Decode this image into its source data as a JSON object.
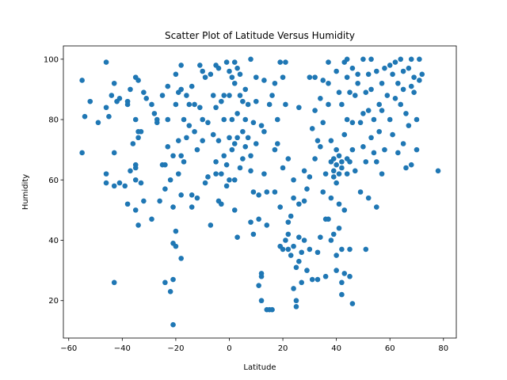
{
  "chart_data": {
    "type": "scatter",
    "title": "Scatter Plot of Latitude Versus Humidity",
    "x_label": "Latitude",
    "y_label": "Humidity",
    "color": "#1f77b4",
    "xlim": [
      -62,
      84.8
    ],
    "ylim": [
      7.6,
      104.4
    ],
    "xticks": [
      {
        "value": -60,
        "label": "−60"
      },
      {
        "value": -40,
        "label": "−40"
      },
      {
        "value": -20,
        "label": "−20"
      },
      0,
      20,
      40,
      60,
      80
    ],
    "yticks": [
      20,
      40,
      60,
      80,
      100
    ],
    "x": [
      -55,
      -55,
      -54,
      -52,
      -49,
      -46,
      -46,
      -46,
      -46,
      -45,
      -44,
      -43,
      -43,
      -43,
      -43,
      -42,
      -41,
      -41,
      -39,
      -38,
      -38,
      -38,
      -37,
      -37,
      -36,
      -35,
      -35,
      -35,
      -35,
      -35,
      -35,
      -34,
      -34,
      -34,
      -34,
      -33,
      -33,
      -32,
      -32,
      -31,
      -29,
      -29,
      -28,
      -27,
      -27,
      -26,
      -25,
      -25,
      -24,
      -24,
      -24,
      -23,
      -23,
      -23,
      -22,
      -22,
      -21,
      -21,
      -21,
      -21,
      -21,
      -20,
      -20,
      -20,
      -20,
      -19,
      -19,
      -19,
      -18,
      -18,
      -18,
      -18,
      -18,
      -17,
      -17,
      -16,
      -16,
      -15,
      -15,
      -14,
      -14,
      -14,
      -13,
      -13,
      -12,
      -12,
      -11,
      -11,
      -10,
      -10,
      -10,
      -9,
      -9,
      -8,
      -8,
      -7,
      -7,
      -6,
      -6,
      -5,
      -5,
      -5,
      -5,
      -4,
      -4,
      -4,
      -3,
      -3,
      -3,
      -2,
      -2,
      -2,
      -1,
      -1,
      -1,
      0,
      0,
      0,
      0,
      1,
      1,
      1,
      2,
      2,
      2,
      2,
      2,
      3,
      3,
      3,
      3,
      4,
      4,
      4,
      5,
      5,
      5,
      6,
      6,
      6,
      7,
      7,
      8,
      8,
      8,
      8,
      9,
      9,
      9,
      10,
      10,
      10,
      11,
      11,
      11,
      12,
      12,
      12,
      12,
      13,
      13,
      13,
      14,
      14,
      14,
      15,
      15,
      16,
      16,
      17,
      17,
      17,
      18,
      18,
      19,
      19,
      19,
      20,
      20,
      20,
      21,
      21,
      21,
      22,
      22,
      22,
      22,
      23,
      23,
      24,
      24,
      24,
      24,
      25,
      25,
      25,
      26,
      26,
      26,
      26,
      27,
      27,
      28,
      28,
      28,
      29,
      29,
      30,
      30,
      30,
      31,
      31,
      32,
      32,
      32,
      33,
      33,
      33,
      34,
      34,
      34,
      35,
      35,
      35,
      36,
      36,
      36,
      37,
      37,
      37,
      37,
      38,
      38,
      38,
      38,
      39,
      39,
      40,
      40,
      40,
      40,
      40,
      41,
      41,
      41,
      41,
      42,
      42,
      42,
      42,
      42,
      43,
      43,
      43,
      43,
      44,
      44,
      44,
      44,
      45,
      45,
      45,
      46,
      46,
      46,
      46,
      47,
      47,
      48,
      48,
      49,
      49,
      50,
      50,
      50,
      51,
      51,
      51,
      52,
      52,
      52,
      53,
      53,
      53,
      54,
      54,
      55,
      55,
      55,
      56,
      56,
      57,
      57,
      57,
      58,
      58,
      59,
      60,
      60,
      61,
      61,
      62,
      62,
      63,
      63,
      64,
      64,
      65,
      65,
      65,
      66,
      66,
      67,
      67,
      68,
      68,
      68,
      69,
      69,
      70,
      70,
      71,
      71,
      72,
      78,
      39,
      40,
      41,
      42,
      44,
      45,
      39
    ],
    "values": [
      93,
      69,
      81,
      86,
      79,
      99,
      84,
      62,
      59,
      81,
      88,
      92,
      69,
      58,
      26,
      86,
      87,
      59,
      58,
      52,
      85,
      86,
      90,
      63,
      72,
      94,
      80,
      65,
      64,
      60,
      50,
      93,
      76,
      74,
      45,
      59,
      76,
      53,
      89,
      87,
      85,
      47,
      82,
      79,
      80,
      53,
      88,
      65,
      65,
      57,
      26,
      71,
      80,
      91,
      23,
      60,
      39,
      51,
      68,
      12,
      27,
      38,
      43,
      95,
      85,
      73,
      89,
      62,
      34,
      55,
      68,
      98,
      90,
      66,
      80,
      74,
      88,
      78,
      85,
      91,
      55,
      51,
      76,
      85,
      70,
      54,
      98,
      84,
      96,
      80,
      73,
      59,
      94,
      79,
      61,
      95,
      45,
      88,
      75,
      98,
      84,
      66,
      62,
      97,
      53,
      73,
      52,
      86,
      62,
      80,
      88,
      68,
      99,
      58,
      65,
      96,
      74,
      88,
      60,
      80,
      70,
      94,
      99,
      92,
      72,
      50,
      60,
      82,
      97,
      41,
      74,
      64,
      95,
      88,
      86,
      76,
      67,
      90,
      71,
      80,
      74,
      85,
      100,
      68,
      63,
      46,
      42,
      56,
      79,
      72,
      86,
      94,
      47,
      25,
      55,
      29,
      28,
      20,
      78,
      93,
      76,
      62,
      45,
      17,
      56,
      85,
      17,
      17,
      88,
      92,
      56,
      70,
      80,
      72,
      99,
      38,
      51,
      37,
      94,
      64,
      99,
      40,
      85,
      37,
      46,
      42,
      67,
      48,
      35,
      54,
      60,
      38,
      24,
      31,
      20,
      18,
      33,
      41,
      84,
      52,
      26,
      36,
      63,
      40,
      53,
      30,
      57,
      94,
      37,
      61,
      77,
      27,
      94,
      67,
      83,
      36,
      73,
      27,
      87,
      41,
      71,
      93,
      56,
      79,
      62,
      28,
      47,
      47,
      85,
      99,
      92,
      73,
      66,
      40,
      54,
      63,
      42,
      96,
      59,
      30,
      35,
      70,
      44,
      89,
      62,
      52,
      22,
      26,
      37,
      66,
      85,
      99,
      75,
      50,
      29,
      100,
      94,
      80,
      62,
      89,
      37,
      28,
      19,
      97,
      70,
      79,
      88,
      63,
      95,
      92,
      79,
      56,
      100,
      82,
      71,
      37,
      89,
      66,
      83,
      95,
      54,
      100,
      74,
      90,
      80,
      69,
      51,
      96,
      66,
      85,
      76,
      92,
      62,
      83,
      97,
      70,
      88,
      98,
      80,
      95,
      75,
      99,
      87,
      92,
      69,
      100,
      85,
      96,
      90,
      72,
      64,
      82,
      97,
      78,
      91,
      100,
      65,
      89,
      94,
      70,
      80,
      100,
      93,
      95,
      63,
      67,
      65,
      68,
      64,
      67,
      66,
      61
    ]
  }
}
